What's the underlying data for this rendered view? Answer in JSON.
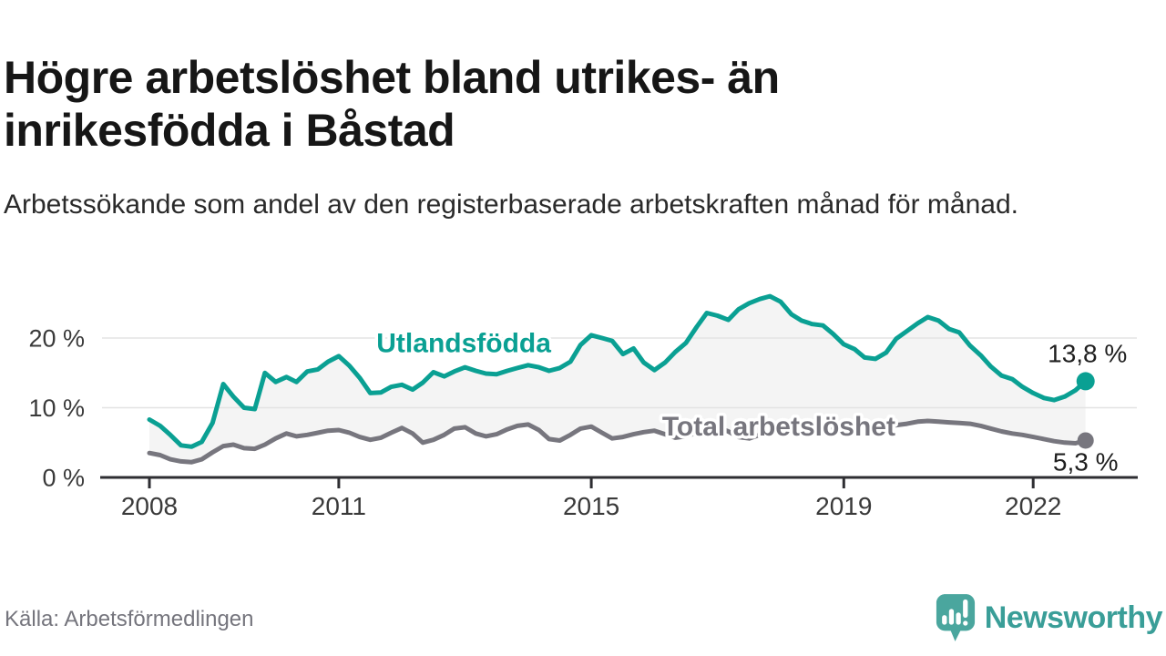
{
  "header": {
    "title": "Högre arbetslöshet bland utrikes- än inrikesfödda i Båstad",
    "subtitle": "Arbetssökande som andel av den registerbaserade arbetskraften månad för månad."
  },
  "footer": {
    "source": "Källa: Arbetsförmedlingen",
    "brand_name": "Newsworthy"
  },
  "colors": {
    "accent_teal": "#0aa093",
    "line_gray": "#77767e",
    "brand_teal": "#3a9e98",
    "icon_teal": "#4aa69e",
    "title_text": "#161616",
    "axis_text": "#3a3a3a",
    "end_label_text": "#1f1f1f",
    "gridline": "#e3e3e3",
    "axis_line": "#2e2e32",
    "area_fill": "#f4f4f4"
  },
  "chart_data": {
    "type": "line",
    "unit": "%",
    "grid": "horizontal",
    "legend_position": "inline-labels",
    "ylim": [
      0,
      28
    ],
    "x_ticks": [
      2008,
      2011,
      2015,
      2019,
      2022
    ],
    "y_ticks": [
      {
        "value": 0,
        "label": "0 %"
      },
      {
        "value": 10,
        "label": "10 %"
      },
      {
        "value": 20,
        "label": "20 %"
      }
    ],
    "x": [
      2008.0,
      2008.17,
      2008.33,
      2008.5,
      2008.67,
      2008.83,
      2009.0,
      2009.17,
      2009.33,
      2009.5,
      2009.67,
      2009.83,
      2010.0,
      2010.17,
      2010.33,
      2010.5,
      2010.67,
      2010.83,
      2011.0,
      2011.17,
      2011.33,
      2011.5,
      2011.67,
      2011.83,
      2012.0,
      2012.17,
      2012.33,
      2012.5,
      2012.67,
      2012.83,
      2013.0,
      2013.17,
      2013.33,
      2013.5,
      2013.67,
      2013.83,
      2014.0,
      2014.17,
      2014.33,
      2014.5,
      2014.67,
      2014.83,
      2015.0,
      2015.17,
      2015.33,
      2015.5,
      2015.67,
      2015.83,
      2016.0,
      2016.17,
      2016.33,
      2016.5,
      2016.67,
      2016.83,
      2017.0,
      2017.17,
      2017.33,
      2017.5,
      2017.67,
      2017.83,
      2018.0,
      2018.17,
      2018.33,
      2018.5,
      2018.67,
      2018.83,
      2019.0,
      2019.17,
      2019.33,
      2019.5,
      2019.67,
      2019.83,
      2020.0,
      2020.17,
      2020.33,
      2020.5,
      2020.67,
      2020.83,
      2021.0,
      2021.17,
      2021.33,
      2021.5,
      2021.67,
      2021.83,
      2022.0,
      2022.17,
      2022.33,
      2022.5,
      2022.67,
      2022.83
    ],
    "series": [
      {
        "name": "Utlandsfödda",
        "color": "#0aa093",
        "end_label": "13,8 %",
        "end_value": 13.8,
        "values": [
          8.3,
          7.4,
          6.1,
          4.6,
          4.4,
          5.1,
          7.8,
          13.4,
          11.6,
          10.0,
          9.8,
          15.0,
          13.7,
          14.4,
          13.7,
          15.2,
          15.5,
          16.6,
          17.4,
          16.0,
          14.3,
          12.1,
          12.2,
          13.0,
          13.3,
          12.6,
          13.6,
          15.1,
          14.5,
          15.2,
          15.8,
          15.3,
          14.9,
          14.8,
          15.3,
          15.7,
          16.1,
          15.8,
          15.3,
          15.7,
          16.6,
          19.0,
          20.4,
          20.0,
          19.6,
          17.7,
          18.5,
          16.5,
          15.4,
          16.5,
          18.0,
          19.3,
          21.6,
          23.6,
          23.2,
          22.6,
          24.1,
          25.0,
          25.6,
          26.0,
          25.2,
          23.4,
          22.5,
          22.0,
          21.8,
          20.6,
          19.1,
          18.4,
          17.2,
          17.0,
          17.9,
          19.9,
          21.0,
          22.1,
          23.0,
          22.5,
          21.3,
          20.8,
          18.9,
          17.5,
          15.9,
          14.6,
          14.1,
          13.0,
          12.1,
          11.4,
          11.1,
          11.6,
          12.5,
          13.8
        ]
      },
      {
        "name": "Total arbetslöshet",
        "color": "#77767e",
        "end_label": "5,3 %",
        "end_value": 5.3,
        "values": [
          3.5,
          3.2,
          2.6,
          2.3,
          2.2,
          2.6,
          3.6,
          4.5,
          4.7,
          4.2,
          4.1,
          4.7,
          5.6,
          6.3,
          5.9,
          6.1,
          6.4,
          6.7,
          6.8,
          6.4,
          5.8,
          5.4,
          5.7,
          6.4,
          7.1,
          6.3,
          5.0,
          5.4,
          6.1,
          7.0,
          7.2,
          6.3,
          5.9,
          6.2,
          6.9,
          7.4,
          7.6,
          6.8,
          5.5,
          5.3,
          6.1,
          7.0,
          7.3,
          6.4,
          5.6,
          5.8,
          6.2,
          6.5,
          6.7,
          6.2,
          5.7,
          5.9,
          6.4,
          6.9,
          7.2,
          6.6,
          5.8,
          5.6,
          6.1,
          6.8,
          7.1,
          6.7,
          6.2,
          6.4,
          6.8,
          7.1,
          7.3,
          7.0,
          6.8,
          7.0,
          7.2,
          7.5,
          7.7,
          8.0,
          8.1,
          8.0,
          7.9,
          7.8,
          7.7,
          7.4,
          7.0,
          6.6,
          6.3,
          6.1,
          5.8,
          5.5,
          5.2,
          5.0,
          4.9,
          5.3
        ]
      }
    ],
    "series_labels": [
      {
        "text": "Utlandsfödda",
        "x": 2012.98,
        "y": 19.2,
        "color": "#0aa093"
      },
      {
        "text": "Total arbetslöshet",
        "x": 2017.97,
        "y": 7.25,
        "color": "#77767e"
      }
    ]
  }
}
